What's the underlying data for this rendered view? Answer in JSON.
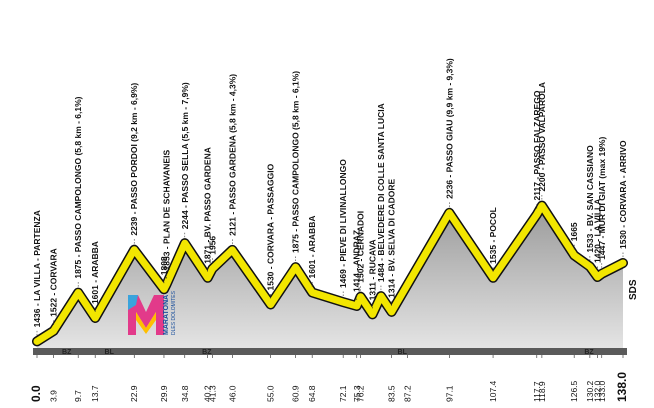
{
  "chart_data": {
    "type": "profile",
    "profile": {
      "color": "#f2e600",
      "x": [
        0,
        3.9,
        9.7,
        13.7,
        22.9,
        29.9,
        30.5,
        34.8,
        40.2,
        41.3,
        46.0,
        55.0,
        60.9,
        64.8,
        72.1,
        75.3,
        76.2,
        79.0,
        81.0,
        83.5,
        97.1,
        107.4,
        117.7,
        118.9,
        126.5,
        130.2,
        132.0,
        133.0,
        138.0
      ],
      "values": [
        1436,
        1522,
        1875,
        1601,
        2239,
        1808,
        1853,
        2244,
        1871,
        1956,
        2121,
        1530,
        1875,
        1601,
        1469,
        1414,
        1502,
        1311,
        1484,
        1314,
        2236,
        1535,
        2117,
        2200,
        1665,
        1533,
        1420,
        1447,
        1530
      ],
      "point_labels": [
        "1436 - LA VILLA - PARTENZA",
        "1522 - CORVARA",
        "1875 - PASSO CAMPOLONGO (5,8 km - 6,1%)",
        "1601 - ARABBA",
        "2239 - PASSO PORDOI (9,2 km - 6,9%)",
        "1808",
        "1853 - PLAN DE SCHAVANEIS",
        "2244 - PASSO SELLA (5,5 km - 7,9%)",
        "1871 - BV. PASSO GARDENA",
        "1956",
        "2121 - PASSO GARDENA (5,8 km - 4,3%)",
        "1530 - CORVARA - PASSAGGIO",
        "1875 - PASSO CAMPOLONGO (5,8 km - 6,1%)",
        "1601 - ARABBA",
        "1469 - PIEVE DI LIVINALLONGO",
        "1414 - ANDRAZ",
        "1502 - CERNADOI",
        "1311 - RUCAVA",
        "1484 - BELVEDERE DI COLLE SANTA LUCIA",
        "1314 - BV. SELVA DI CADORE",
        "2236 - PASSO GIAU (9,9 km - 9,3%)",
        "1535 - POCOL",
        "2117 - PASSO FALZAREGO",
        "2200 - PASSO VALPAROLA",
        "1665",
        "1533 - BV. SAN CASSIANO",
        "1420 - LA VILLA",
        "1447 - MUR DI GIAT (max 19%)",
        "1530 - CORVARA - ARRIVO"
      ]
    },
    "xlim": [
      0,
      138
    ],
    "ylim": [
      1200,
      2400
    ],
    "xticks": [
      {
        "value": 0,
        "label": "0.0"
      },
      3.9,
      9.7,
      13.7,
      22.9,
      29.9,
      34.8,
      40.2,
      41.3,
      {
        "value": 46,
        "label": "46.0"
      },
      {
        "value": 55,
        "label": "55.0"
      },
      60.9,
      64.8,
      72.1,
      75.3,
      76.2,
      83.5,
      87.2,
      97.1,
      107.4,
      117.7,
      118.9,
      126.5,
      130.2,
      {
        "value": 132,
        "label": "132.0"
      },
      {
        "value": 133,
        "label": "133.0"
      },
      {
        "value": 138,
        "label": "138.0"
      }
    ],
    "regions": [
      "BZ",
      "BL",
      "BZ",
      "BL",
      "BZ"
    ],
    "end_mark": "SDS",
    "logo": [
      "MARATONA",
      "DLES DOLOMITES"
    ]
  }
}
